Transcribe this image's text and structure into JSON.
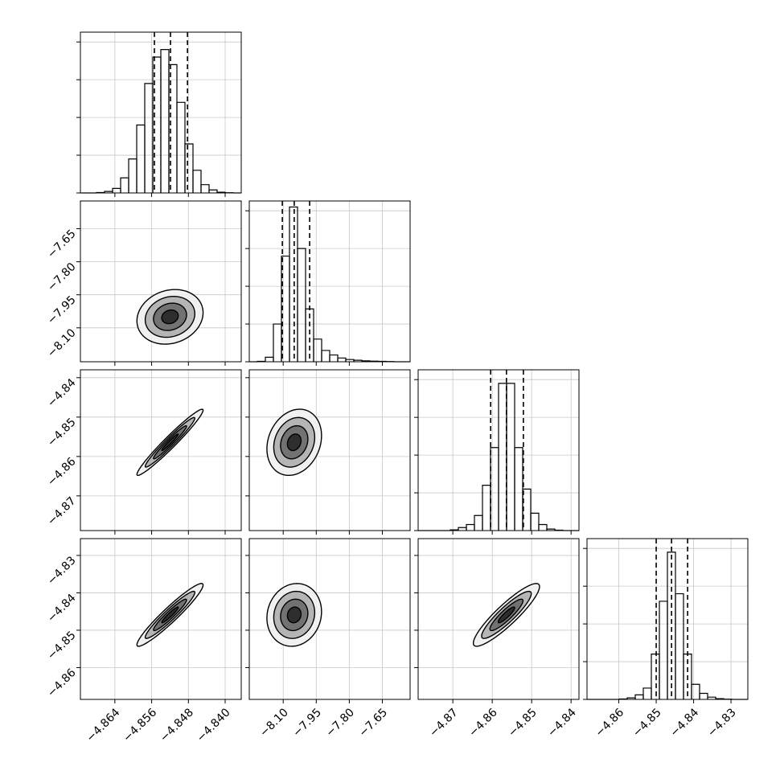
{
  "chart_data": {
    "type": "corner",
    "params": [
      {
        "lim": [
          -4.8715,
          -4.8365
        ],
        "ticks": [
          {
            "value": -4.864,
            "label": "−4.864"
          },
          {
            "value": -4.856,
            "label": "−4.856"
          },
          {
            "value": -4.848,
            "label": "−4.848"
          },
          {
            "value": -4.84,
            "label": "−4.840"
          }
        ]
      },
      {
        "lim": [
          -8.254,
          -7.524
        ],
        "ticks": [
          {
            "value": -8.1,
            "label": "−8.10"
          },
          {
            "value": -7.95,
            "label": "−7.95"
          },
          {
            "value": -7.8,
            "label": "−7.80"
          },
          {
            "value": -7.65,
            "label": "−7.65"
          }
        ]
      },
      {
        "lim": [
          -4.8788,
          -4.838
        ],
        "ticks": [
          {
            "value": -4.87,
            "label": "−4.87"
          },
          {
            "value": -4.86,
            "label": "−4.86"
          },
          {
            "value": -4.85,
            "label": "−4.85"
          },
          {
            "value": -4.84,
            "label": "−4.84"
          }
        ]
      },
      {
        "lim": [
          -4.8685,
          -4.8255
        ],
        "ticks": [
          {
            "value": -4.86,
            "label": "−4.86"
          },
          {
            "value": -4.85,
            "label": "−4.85"
          },
          {
            "value": -4.84,
            "label": "−4.84"
          },
          {
            "value": -4.83,
            "label": "−4.83"
          }
        ]
      }
    ],
    "hists": [
      {
        "bins": [
          -4.8715,
          -4.86975,
          -4.868,
          -4.86625,
          -4.8645,
          -4.86275,
          -4.861,
          -4.85925,
          -4.8575,
          -4.85575,
          -4.854,
          -4.85225,
          -4.8505,
          -4.84875,
          -4.847,
          -4.84525,
          -4.8435,
          -4.84175,
          -4.84,
          -4.83825,
          -4.8365
        ],
        "counts": [
          0,
          0,
          5,
          20,
          60,
          200,
          450,
          900,
          1450,
          1800,
          1900,
          1700,
          1200,
          650,
          300,
          110,
          40,
          10,
          3,
          0
        ],
        "quantiles": [
          -4.8554,
          -4.8519,
          -4.8482
        ],
        "ylim": [
          0,
          2130
        ],
        "yticks": [
          0,
          500,
          1000,
          1500,
          2000
        ]
      },
      {
        "bins": [
          -8.254,
          -8.2175,
          -8.181,
          -8.1445,
          -8.108,
          -8.0715,
          -8.035,
          -7.9985,
          -7.962,
          -7.9255,
          -7.889,
          -7.8525,
          -7.816,
          -7.7795,
          -7.743,
          -7.7065,
          -7.67,
          -7.6335,
          -7.597,
          -7.5605,
          -7.524
        ],
        "counts": [
          0,
          5,
          60,
          500,
          1400,
          2050,
          1500,
          700,
          300,
          150,
          90,
          50,
          30,
          20,
          12,
          8,
          5,
          3,
          0,
          0
        ],
        "quantiles": [
          -8.104,
          -8.05,
          -7.98
        ],
        "ylim": [
          0,
          2130
        ],
        "yticks": [
          0,
          500,
          1000,
          1500,
          2000
        ]
      },
      {
        "bins": [
          -4.8788,
          -4.87676,
          -4.87472,
          -4.87268,
          -4.87064,
          -4.8686,
          -4.86656,
          -4.86452,
          -4.86248,
          -4.86044,
          -4.8584,
          -4.85636,
          -4.85432,
          -4.85228,
          -4.85024,
          -4.8482,
          -4.84616,
          -4.84412,
          -4.84208,
          -4.84004,
          -4.838
        ],
        "counts": [
          0,
          0,
          0,
          0,
          10,
          40,
          80,
          200,
          600,
          1100,
          1950,
          1950,
          1100,
          550,
          230,
          80,
          20,
          5,
          0,
          0
        ],
        "quantiles": [
          -4.8604,
          -4.8564,
          -4.8521
        ],
        "ylim": [
          0,
          2130
        ],
        "yticks": [
          0,
          500,
          1000,
          1500,
          2000
        ]
      },
      {
        "bins": [
          -4.8685,
          -4.86635,
          -4.8642,
          -4.86205,
          -4.8599,
          -4.85775,
          -4.8556,
          -4.85345,
          -4.8513,
          -4.84915,
          -4.847,
          -4.84485,
          -4.8427,
          -4.84055,
          -4.8384,
          -4.83625,
          -4.8341,
          -4.83195,
          -4.8298,
          -4.82765,
          -4.8255
        ],
        "counts": [
          0,
          0,
          0,
          0,
          5,
          20,
          60,
          150,
          600,
          1300,
          1950,
          1400,
          600,
          200,
          80,
          30,
          10,
          3,
          0,
          0
        ],
        "quantiles": [
          -4.85,
          -4.8459,
          -4.8416
        ],
        "ylim": [
          0,
          2130
        ],
        "yticks": [
          0,
          500,
          1000,
          1500,
          2000
        ]
      }
    ],
    "pairs": [
      {
        "x": 0,
        "y": 1,
        "center": [
          -4.852,
          -8.05
        ],
        "sd": [
          0.0036,
          0.062
        ],
        "corr": 0.15,
        "levels": [
          0.5,
          1,
          1.5,
          2
        ]
      },
      {
        "x": 0,
        "y": 2,
        "center": [
          -4.852,
          -4.8564
        ],
        "sd": [
          0.0036,
          0.0042
        ],
        "corr": 0.97,
        "levels": [
          0.5,
          1,
          1.5,
          2
        ]
      },
      {
        "x": 0,
        "y": 3,
        "center": [
          -4.852,
          -4.8459
        ],
        "sd": [
          0.0036,
          0.0042
        ],
        "corr": 0.95,
        "levels": [
          0.5,
          1,
          1.5,
          2
        ]
      },
      {
        "x": 1,
        "y": 2,
        "center": [
          -8.05,
          -4.8564
        ],
        "sd": [
          0.062,
          0.0042
        ],
        "corr": 0.2,
        "levels": [
          0.5,
          1,
          1.5,
          2
        ]
      },
      {
        "x": 1,
        "y": 3,
        "center": [
          -8.05,
          -4.8459
        ],
        "sd": [
          0.062,
          0.0042
        ],
        "corr": 0.1,
        "levels": [
          0.5,
          1,
          1.5,
          2
        ]
      },
      {
        "x": 2,
        "y": 3,
        "center": [
          -4.8564,
          -4.8459
        ],
        "sd": [
          0.0042,
          0.0042
        ],
        "corr": 0.9,
        "levels": [
          0.5,
          1,
          1.5,
          2
        ]
      }
    ]
  }
}
